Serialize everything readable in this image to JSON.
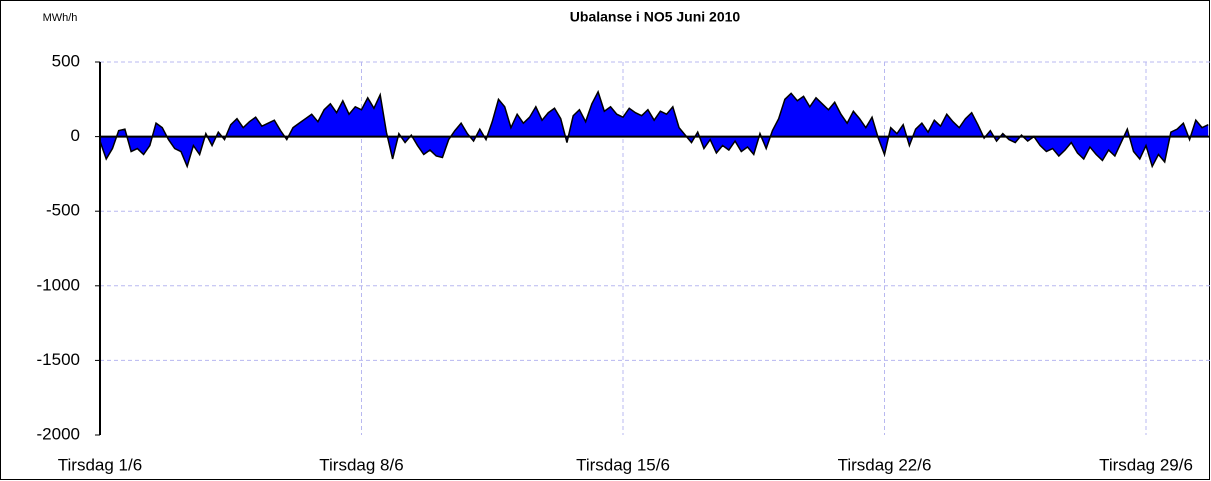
{
  "chart_data": {
    "type": "area",
    "title": "Ubalanse i NO5 Juni 2010",
    "y_label": "MWh/h",
    "ylim": [
      -2000,
      500
    ],
    "yticks": [
      -2000,
      -1500,
      -1000,
      -500,
      0,
      500
    ],
    "grid": true,
    "color": "#0000ff",
    "line_color": "#000000",
    "categories": [
      "Tirsdag  1/6",
      null,
      null,
      null,
      null,
      null,
      null,
      null,
      null,
      null,
      null,
      null,
      null,
      null,
      null,
      null,
      null,
      null,
      null,
      null,
      null,
      null,
      null,
      null,
      null,
      null,
      null,
      null,
      null,
      null,
      null,
      null,
      null,
      null,
      null,
      null,
      null,
      null,
      null,
      null,
      null,
      null,
      "Tirsdag  8/6",
      null,
      null,
      null,
      null,
      null,
      null,
      null,
      null,
      null,
      null,
      null,
      null,
      null,
      null,
      null,
      null,
      null,
      null,
      null,
      null,
      null,
      null,
      null,
      null,
      null,
      null,
      null,
      null,
      null,
      null,
      null,
      null,
      null,
      null,
      null,
      null,
      null,
      null,
      null,
      null,
      null,
      "Tirsdag  15/6",
      null,
      null,
      null,
      null,
      null,
      null,
      null,
      null,
      null,
      null,
      null,
      null,
      null,
      null,
      null,
      null,
      null,
      null,
      null,
      null,
      null,
      null,
      null,
      null,
      null,
      null,
      null,
      null,
      null,
      null,
      null,
      null,
      null,
      null,
      null,
      null,
      null,
      null,
      null,
      null,
      null,
      "Tirsdag  22/6",
      null,
      null,
      null,
      null,
      null,
      null,
      null,
      null,
      null,
      null,
      null,
      null,
      null,
      null,
      null,
      null,
      null,
      null,
      null,
      null,
      null,
      null,
      null,
      null,
      null,
      null,
      null,
      null,
      null,
      null,
      null,
      null,
      null,
      null,
      null,
      null,
      null,
      null,
      null,
      null,
      null,
      "Tirsdag 29/6",
      null,
      null,
      null,
      null,
      null,
      null,
      null,
      null,
      null,
      null
    ],
    "values": [
      -30,
      -150,
      -80,
      40,
      50,
      -100,
      -80,
      -120,
      -60,
      90,
      60,
      -20,
      -80,
      -100,
      -200,
      -60,
      -120,
      20,
      -60,
      30,
      -20,
      80,
      120,
      60,
      100,
      130,
      70,
      90,
      110,
      40,
      -20,
      60,
      90,
      120,
      150,
      100,
      180,
      220,
      160,
      240,
      150,
      200,
      180,
      260,
      190,
      280,
      30,
      -150,
      20,
      -40,
      10,
      -60,
      -120,
      -90,
      -130,
      -140,
      -20,
      40,
      90,
      20,
      -30,
      50,
      -20,
      100,
      250,
      200,
      60,
      150,
      90,
      130,
      200,
      110,
      160,
      190,
      120,
      -40,
      140,
      180,
      100,
      220,
      300,
      170,
      200,
      150,
      130,
      190,
      160,
      140,
      180,
      110,
      170,
      150,
      200,
      60,
      10,
      -40,
      30,
      -80,
      -20,
      -110,
      -60,
      -90,
      -30,
      -100,
      -70,
      -120,
      20,
      -80,
      40,
      120,
      250,
      290,
      240,
      270,
      200,
      260,
      220,
      180,
      230,
      150,
      90,
      170,
      120,
      60,
      130,
      -10,
      -120,
      60,
      20,
      80,
      -60,
      50,
      90,
      30,
      110,
      70,
      150,
      100,
      60,
      120,
      160,
      80,
      -10,
      40,
      -30,
      20,
      -20,
      -40,
      10,
      -30,
      0,
      -60,
      -100,
      -80,
      -130,
      -90,
      -40,
      -110,
      -150,
      -70,
      -120,
      -160,
      -90,
      -130,
      -40,
      50,
      -100,
      -150,
      -60,
      -200,
      -120,
      -170,
      30,
      50,
      90,
      -20,
      110,
      60,
      80
    ]
  }
}
